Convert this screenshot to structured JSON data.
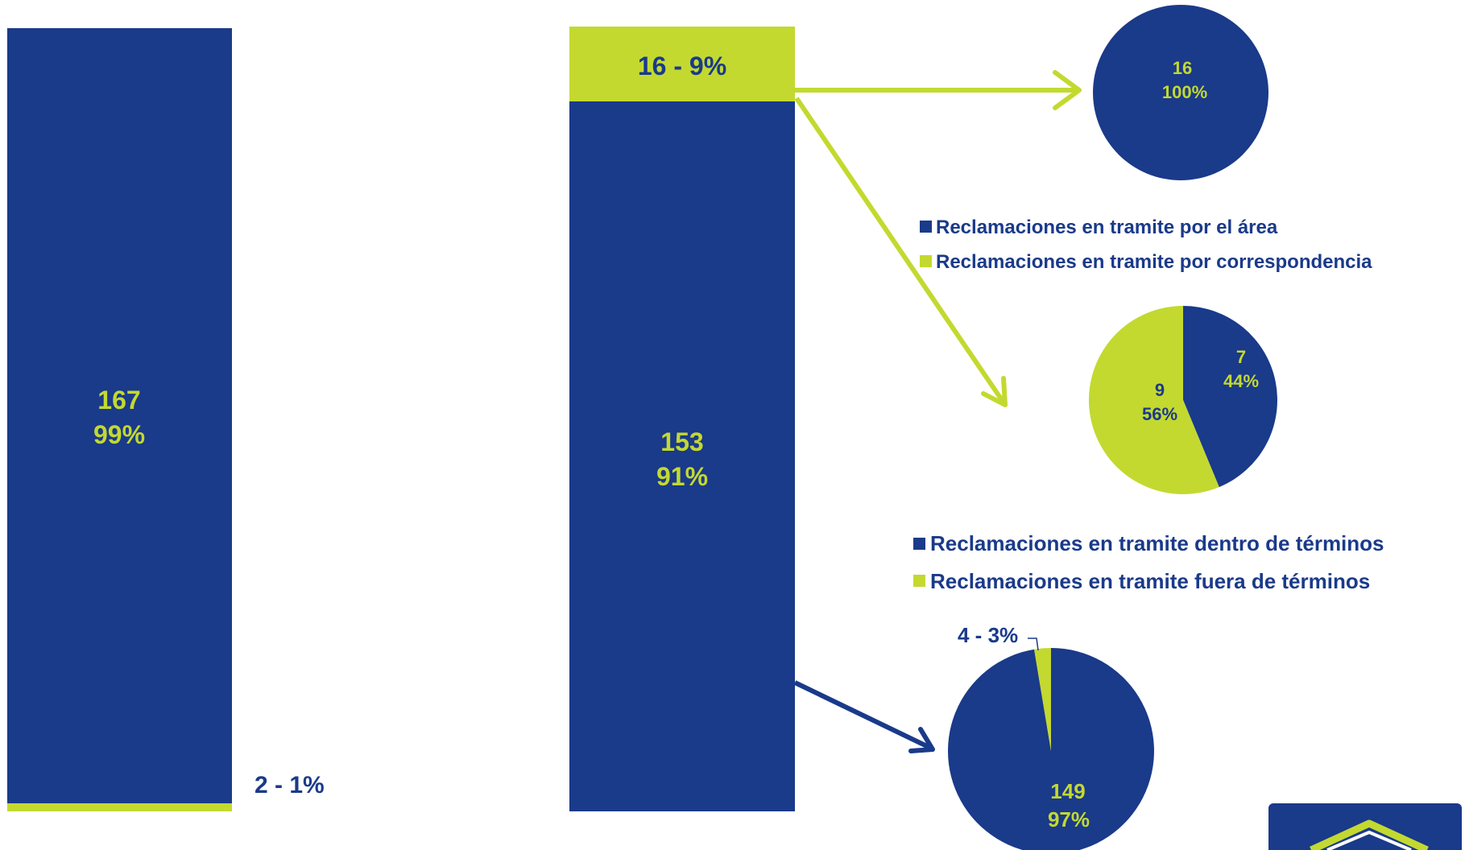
{
  "colors": {
    "blue": "#1a3a8a",
    "green": "#c3d930",
    "white": "#ffffff"
  },
  "chart_data": [
    {
      "type": "bar",
      "stacked": true,
      "segments": [
        {
          "value": 167,
          "percent": "99%",
          "color": "blue",
          "label_value": "167",
          "label_percent": "99%"
        },
        {
          "value": 2,
          "percent": "1%",
          "color": "green",
          "label": "2 - 1%"
        }
      ]
    },
    {
      "type": "bar",
      "stacked": true,
      "segments": [
        {
          "value": 153,
          "percent": "91%",
          "color": "blue",
          "label_value": "153",
          "label_percent": "91%"
        },
        {
          "value": 16,
          "percent": "9%",
          "color": "green",
          "label": "16 - 9%"
        }
      ]
    },
    {
      "type": "pie",
      "slices": [
        {
          "value": 16,
          "percent": "100%",
          "color": "blue",
          "label_value": "16",
          "label_percent": "100%"
        }
      ]
    },
    {
      "type": "pie",
      "legend": [
        "Reclamaciones en tramite por el área",
        "Reclamaciones en tramite por correspondencia"
      ],
      "slices": [
        {
          "value": 7,
          "percent": "44%",
          "color": "blue",
          "label_value": "7",
          "label_percent": "44%"
        },
        {
          "value": 9,
          "percent": "56%",
          "color": "green",
          "label_value": "9",
          "label_percent": "56%"
        }
      ]
    },
    {
      "type": "pie",
      "legend": [
        "Reclamaciones en tramite dentro de términos",
        "Reclamaciones en tramite fuera de términos"
      ],
      "slices": [
        {
          "value": 149,
          "percent": "97%",
          "color": "blue",
          "label_value": "149",
          "label_percent": "97%"
        },
        {
          "value": 4,
          "percent": "3%",
          "color": "green",
          "label": "4 - 3%"
        }
      ]
    }
  ]
}
